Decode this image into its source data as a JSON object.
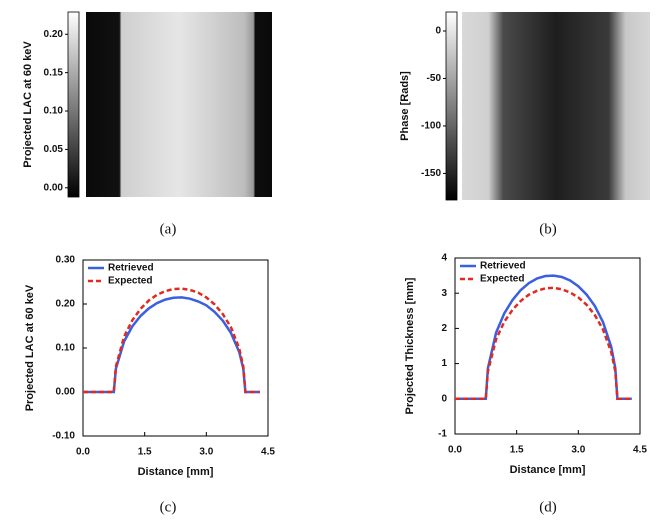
{
  "chart_data": [
    {
      "type": "image",
      "colorbar_label": "Projected LAC at 60 keV",
      "colorbar_lim": [
        -0.012,
        0.229
      ],
      "colorbar_ticks": [
        {
          "value": 0,
          "label": "0.00"
        },
        {
          "value": 0.05,
          "label": "0.05"
        },
        {
          "value": 0.1,
          "label": "0.10"
        },
        {
          "value": 0.15,
          "label": "0.15"
        },
        {
          "value": 0.2,
          "label": "0.20"
        }
      ],
      "caption": "(a)"
    },
    {
      "type": "image",
      "colorbar_label": "Phase [Rads]",
      "colorbar_lim": [
        -178,
        20
      ],
      "colorbar_ticks": [
        -150,
        -100,
        -50,
        0
      ],
      "caption": "(b)"
    },
    {
      "type": "line",
      "xlabel": "Distance [mm]",
      "ylabel": "Projected LAC at 60 keV",
      "caption": "(c)",
      "xlim": [
        0,
        4.5
      ],
      "ylim": [
        -0.1,
        0.3
      ],
      "xticks": [
        {
          "value": 0,
          "label": "0.0"
        },
        1.5,
        {
          "value": 3,
          "label": "3.0"
        },
        4.5
      ],
      "yticks": [
        {
          "value": -0.1,
          "label": "-0.10"
        },
        {
          "value": 0,
          "label": "0.00"
        },
        {
          "value": 0.1,
          "label": "0.10"
        },
        {
          "value": 0.2,
          "label": "0.20"
        },
        {
          "value": 0.3,
          "label": "0.30"
        }
      ],
      "legend": "upper-left",
      "x": [
        0,
        0.2,
        0.4,
        0.6,
        0.75,
        0.8,
        1.0,
        1.2,
        1.4,
        1.6,
        1.8,
        2.0,
        2.2,
        2.4,
        2.6,
        2.8,
        3.0,
        3.2,
        3.4,
        3.6,
        3.8,
        3.9,
        3.95,
        4.0,
        4.2,
        4.3
      ],
      "series": [
        {
          "name": "Retrieved",
          "color": "#3a5fe0",
          "style": "solid",
          "values": [
            0,
            0,
            0,
            0,
            0,
            0.053,
            0.115,
            0.149,
            0.173,
            0.19,
            0.202,
            0.21,
            0.214,
            0.215,
            0.212,
            0.206,
            0.197,
            0.182,
            0.162,
            0.134,
            0.091,
            0.053,
            0,
            0,
            0,
            0
          ]
        },
        {
          "name": "Expected",
          "color": "#e02a1f",
          "style": "dashed",
          "values": [
            0,
            0,
            0,
            0,
            0,
            0.058,
            0.126,
            0.163,
            0.189,
            0.208,
            0.221,
            0.229,
            0.234,
            0.235,
            0.232,
            0.226,
            0.215,
            0.199,
            0.177,
            0.147,
            0.099,
            0.058,
            0,
            0,
            0,
            0
          ]
        }
      ]
    },
    {
      "type": "line",
      "xlabel": "Distance [mm]",
      "ylabel": "Projected Thickness [mm]",
      "caption": "(d)",
      "xlim": [
        0,
        4.5
      ],
      "ylim": [
        -1,
        4
      ],
      "xticks": [
        {
          "value": 0,
          "label": "0.0"
        },
        1.5,
        {
          "value": 3,
          "label": "3.0"
        },
        4.5
      ],
      "yticks": [
        -1,
        0,
        1,
        2,
        3,
        4
      ],
      "legend": "upper-left",
      "x": [
        0,
        0.2,
        0.4,
        0.6,
        0.75,
        0.8,
        1.0,
        1.2,
        1.4,
        1.6,
        1.8,
        2.0,
        2.2,
        2.4,
        2.6,
        2.8,
        3.0,
        3.2,
        3.4,
        3.6,
        3.8,
        3.9,
        3.95,
        4.0,
        4.2,
        4.3
      ],
      "series": [
        {
          "name": "Retrieved",
          "color": "#3a5fe0",
          "style": "solid",
          "values": [
            0,
            0,
            0,
            0,
            0,
            0.87,
            1.88,
            2.43,
            2.81,
            3.09,
            3.29,
            3.42,
            3.49,
            3.5,
            3.46,
            3.36,
            3.2,
            2.96,
            2.64,
            2.18,
            1.48,
            0.87,
            0,
            0,
            0,
            0
          ]
        },
        {
          "name": "Expected",
          "color": "#e02a1f",
          "style": "dashed",
          "values": [
            0,
            0,
            0,
            0,
            0,
            0.78,
            1.69,
            2.19,
            2.53,
            2.78,
            2.96,
            3.07,
            3.14,
            3.15,
            3.11,
            3.02,
            2.88,
            2.67,
            2.38,
            1.97,
            1.33,
            0.78,
            0,
            0,
            0,
            0
          ]
        }
      ]
    }
  ]
}
